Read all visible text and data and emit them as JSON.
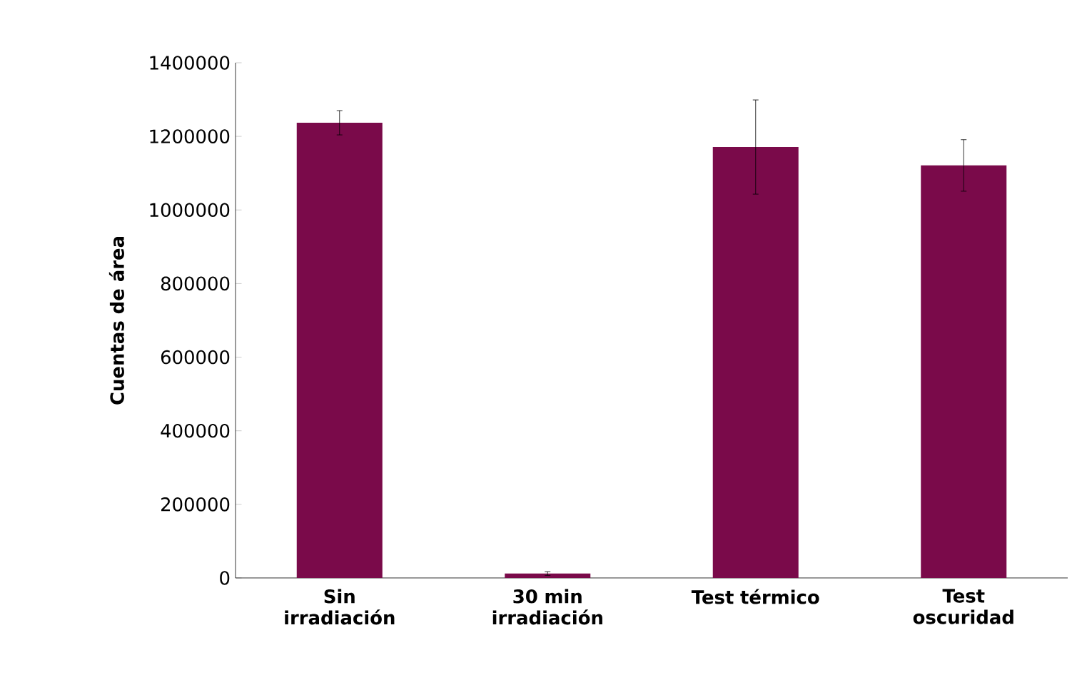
{
  "chart_data": {
    "type": "bar",
    "ylabel": "Cuentas de área",
    "categories": [
      "Sin irradiación",
      "30 min irradiación",
      "Test térmico",
      "Test oscuridad"
    ],
    "values": [
      1237000,
      12000,
      1171000,
      1121000
    ],
    "errors": [
      33000,
      5000,
      128000,
      70000
    ],
    "color": "#7a0a4a",
    "ylim": [
      0,
      1400000
    ],
    "yticks": [
      0,
      200000,
      400000,
      600000,
      800000,
      1000000,
      1200000,
      1400000
    ],
    "grid": false
  }
}
